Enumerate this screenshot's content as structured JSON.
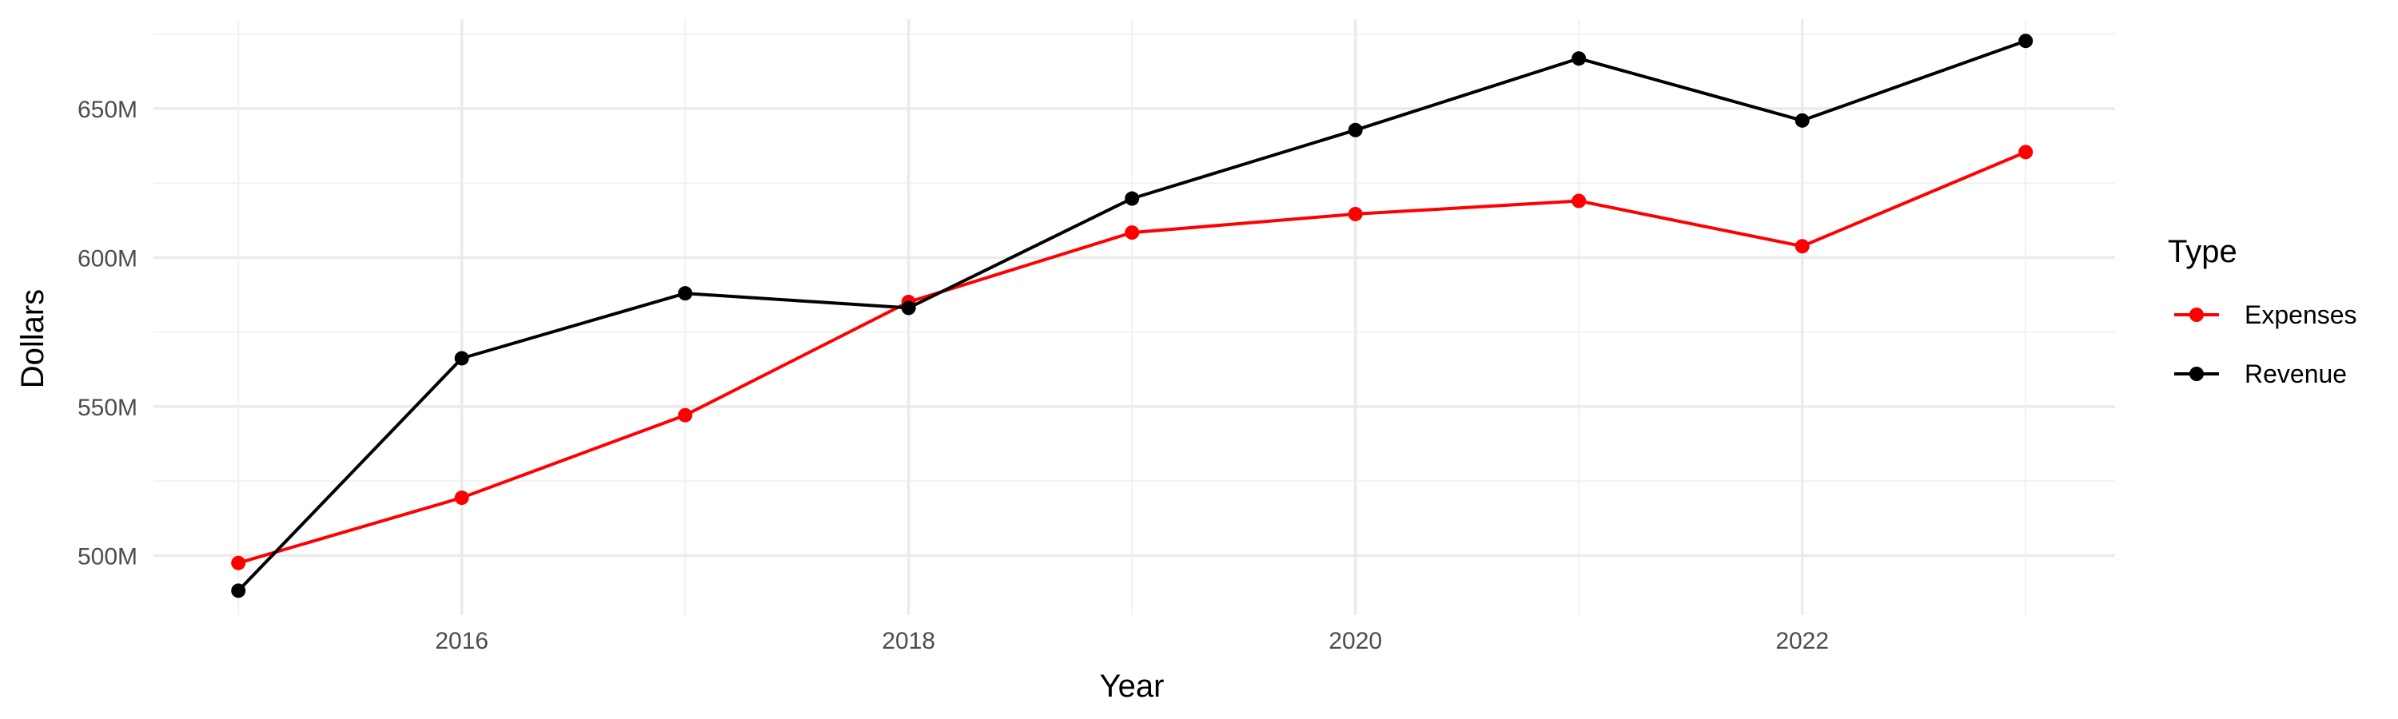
{
  "chart_data": {
    "type": "line",
    "title": "",
    "xlabel": "Year",
    "ylabel": "Dollars",
    "x": [
      2015,
      2016,
      2017,
      2018,
      2019,
      2020,
      2021,
      2022,
      2023
    ],
    "xlim": [
      2014.62,
      2023.4
    ],
    "ylim": [
      480,
      680
    ],
    "x_ticks": [
      2016,
      2018,
      2020,
      2022
    ],
    "x_minor_ticks": [
      2015,
      2017,
      2019,
      2021,
      2023
    ],
    "y_ticks": [
      500,
      550,
      600,
      650
    ],
    "y_minor_ticks": [
      525,
      575,
      625,
      675
    ],
    "y_tick_labels": [
      "500M",
      "550M",
      "600M",
      "650M"
    ],
    "grid": true,
    "legend": {
      "title": "Type",
      "placement": "right"
    },
    "series": [
      {
        "name": "Expenses",
        "color": "#ff0000",
        "values": [
          497.5,
          519.4,
          547.1,
          585.1,
          608.4,
          614.6,
          619.0,
          603.8,
          635.4
        ]
      },
      {
        "name": "Revenue",
        "color": "#000000",
        "values": [
          488.2,
          566.2,
          588.0,
          583.1,
          619.8,
          642.8,
          666.8,
          646.0,
          672.7
        ]
      }
    ]
  }
}
